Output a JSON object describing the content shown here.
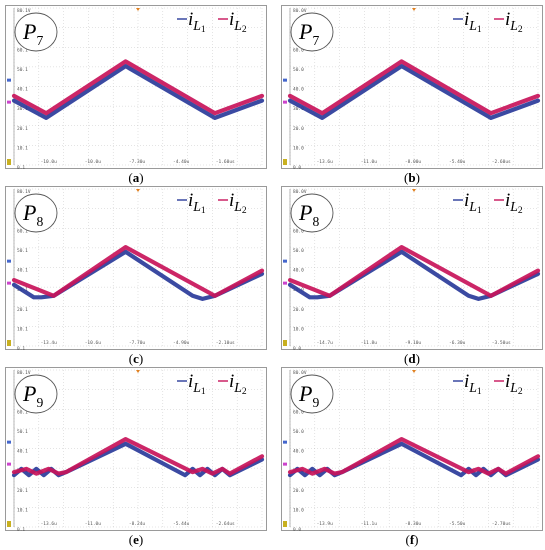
{
  "chart_data": [
    {
      "type": "line",
      "panel_label": "P7",
      "caption": "(a)",
      "legend": [
        "i_{L1}",
        "i_{L2}"
      ],
      "ytick_labels": [
        "80.1V",
        "70.1",
        "60.1",
        "50.1",
        "40.1",
        "30.1",
        "20.1",
        "10.1",
        "0.1"
      ],
      "xtick_labels": [
        "-10.0u",
        "-10.0u",
        "-7.30u",
        "-4.40u",
        "-1.60us"
      ],
      "series": [
        {
          "name": "i_{L1}",
          "color": "#2a3b9a",
          "x": [
            0,
            0.13,
            0.45,
            0.81,
            1
          ],
          "y": [
            0.41,
            0.3,
            0.63,
            0.3,
            0.41
          ]
        },
        {
          "name": "i_{L2}",
          "color": "#c8145a",
          "x": [
            0,
            0.13,
            0.45,
            0.81,
            1
          ],
          "y": [
            0.44,
            0.33,
            0.66,
            0.33,
            0.44
          ]
        }
      ]
    },
    {
      "type": "line",
      "panel_label": "P7",
      "caption": "(b)",
      "legend": [
        "i_{L1}",
        "i_{L2}"
      ],
      "ytick_labels": [
        "80.0V",
        "70.0",
        "60.0",
        "50.0",
        "40.0",
        "30.0",
        "20.0",
        "10.0",
        "0.0"
      ],
      "xtick_labels": [
        "-13.6u",
        "-11.0u",
        "-8.00u",
        "-5.40u",
        "-2.60us"
      ],
      "series": [
        {
          "name": "i_{L1}",
          "color": "#2a3b9a",
          "x": [
            0,
            0.13,
            0.45,
            0.81,
            1
          ],
          "y": [
            0.41,
            0.3,
            0.63,
            0.3,
            0.41
          ]
        },
        {
          "name": "i_{L2}",
          "color": "#c8145a",
          "x": [
            0,
            0.13,
            0.45,
            0.81,
            1
          ],
          "y": [
            0.44,
            0.33,
            0.66,
            0.33,
            0.44
          ]
        }
      ]
    },
    {
      "type": "line",
      "panel_label": "P8",
      "caption": "(c)",
      "legend": [
        "i_{L1}",
        "i_{L2}"
      ],
      "ytick_labels": [
        "80.1V",
        "70.1",
        "60.1",
        "50.1",
        "40.1",
        "30.1",
        "20.1",
        "10.1",
        "0.1"
      ],
      "xtick_labels": [
        "-13.4u",
        "-10.6u",
        "-7.70u",
        "-4.90u",
        "-2.10us"
      ],
      "series": [
        {
          "name": "i_{L1}",
          "color": "#2a3b9a",
          "x": [
            0,
            0.08,
            0.11,
            0.16,
            0.45,
            0.72,
            0.76,
            0.81,
            1
          ],
          "y": [
            0.39,
            0.31,
            0.31,
            0.32,
            0.6,
            0.32,
            0.3,
            0.32,
            0.46
          ]
        },
        {
          "name": "i_{L2}",
          "color": "#c8145a",
          "x": [
            0,
            0.16,
            0.45,
            0.81,
            1
          ],
          "y": [
            0.42,
            0.32,
            0.63,
            0.32,
            0.48
          ]
        }
      ]
    },
    {
      "type": "line",
      "panel_label": "P8",
      "caption": "(d)",
      "legend": [
        "i_{L1}",
        "i_{L2}"
      ],
      "ytick_labels": [
        "80.0V",
        "70.0",
        "60.0",
        "50.0",
        "40.0",
        "30.0",
        "20.0",
        "10.0",
        "0.0"
      ],
      "xtick_labels": [
        "-14.7u",
        "-11.8u",
        "-9.10u",
        "-6.30u",
        "-3.50us"
      ],
      "series": [
        {
          "name": "i_{L1}",
          "color": "#2a3b9a",
          "x": [
            0,
            0.08,
            0.11,
            0.16,
            0.45,
            0.72,
            0.76,
            0.81,
            1
          ],
          "y": [
            0.39,
            0.31,
            0.31,
            0.32,
            0.6,
            0.32,
            0.3,
            0.32,
            0.46
          ]
        },
        {
          "name": "i_{L2}",
          "color": "#c8145a",
          "x": [
            0,
            0.16,
            0.45,
            0.81,
            1
          ],
          "y": [
            0.42,
            0.32,
            0.63,
            0.32,
            0.48
          ]
        }
      ]
    },
    {
      "type": "line",
      "panel_label": "P9",
      "caption": "(e)",
      "legend": [
        "i_{L1}",
        "i_{L2}"
      ],
      "ytick_labels": [
        "80.1V",
        "70.1",
        "60.1",
        "50.1",
        "40.1",
        "30.1",
        "20.1",
        "10.1",
        "0.1"
      ],
      "xtick_labels": [
        "-13.6u",
        "-11.0u",
        "-8.24u",
        "-5.44u",
        "-2.64us"
      ],
      "series": [
        {
          "name": "i_{L1}",
          "color": "#2a3b9a",
          "x": [
            0,
            0.03,
            0.06,
            0.09,
            0.12,
            0.15,
            0.18,
            0.21,
            0.45,
            0.69,
            0.72,
            0.75,
            0.78,
            0.81,
            0.84,
            0.87,
            1
          ],
          "y": [
            0.33,
            0.37,
            0.33,
            0.37,
            0.33,
            0.37,
            0.33,
            0.35,
            0.53,
            0.33,
            0.37,
            0.33,
            0.37,
            0.33,
            0.37,
            0.33,
            0.43
          ]
        },
        {
          "name": "i_{L2}",
          "color": "#c8145a",
          "x": [
            0,
            0.05,
            0.09,
            0.14,
            0.18,
            0.21,
            0.45,
            0.72,
            0.76,
            0.8,
            0.84,
            0.87,
            1
          ],
          "y": [
            0.35,
            0.37,
            0.34,
            0.37,
            0.34,
            0.35,
            0.56,
            0.35,
            0.37,
            0.34,
            0.37,
            0.34,
            0.45
          ]
        }
      ]
    },
    {
      "type": "line",
      "panel_label": "P9",
      "caption": "(f)",
      "legend": [
        "i_{L1}",
        "i_{L2}"
      ],
      "ytick_labels": [
        "80.0V",
        "70.0",
        "60.0",
        "50.0",
        "40.0",
        "30.0",
        "20.0",
        "10.0",
        "0.0"
      ],
      "xtick_labels": [
        "-13.9u",
        "-11.1u",
        "-8.30u",
        "-5.50u",
        "-2.70us"
      ],
      "series": [
        {
          "name": "i_{L1}",
          "color": "#2a3b9a",
          "x": [
            0,
            0.03,
            0.06,
            0.09,
            0.12,
            0.15,
            0.18,
            0.21,
            0.45,
            0.69,
            0.72,
            0.75,
            0.78,
            0.81,
            0.84,
            0.87,
            1
          ],
          "y": [
            0.33,
            0.37,
            0.33,
            0.37,
            0.33,
            0.37,
            0.33,
            0.35,
            0.53,
            0.33,
            0.37,
            0.33,
            0.37,
            0.33,
            0.37,
            0.33,
            0.43
          ]
        },
        {
          "name": "i_{L2}",
          "color": "#c8145a",
          "x": [
            0,
            0.05,
            0.09,
            0.14,
            0.18,
            0.21,
            0.45,
            0.72,
            0.76,
            0.8,
            0.84,
            0.87,
            1
          ],
          "y": [
            0.35,
            0.37,
            0.34,
            0.37,
            0.34,
            0.35,
            0.56,
            0.35,
            0.37,
            0.34,
            0.37,
            0.34,
            0.45
          ]
        }
      ]
    }
  ]
}
